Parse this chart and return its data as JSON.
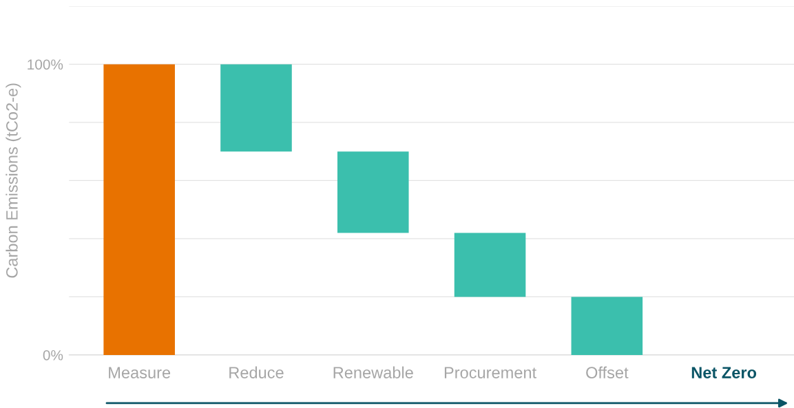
{
  "chart_data": {
    "type": "bar",
    "ylabel": "Carbon Emissions (tCo2-e)",
    "categories": [
      "Measure",
      "Reduce",
      "Renewable",
      "Procurement",
      "Offset",
      "Net Zero"
    ],
    "values": [
      100,
      30,
      28,
      22,
      20,
      null
    ],
    "base": [
      0,
      70,
      42,
      20,
      0,
      null
    ],
    "colors": [
      "#e87200",
      "#3bbfad",
      "#3bbfad",
      "#3bbfad",
      "#3bbfad",
      null
    ],
    "ylim": [
      0,
      120
    ],
    "yticks": [
      {
        "value": 0,
        "label": "0%"
      },
      {
        "value": 20,
        "label": null
      },
      {
        "value": 40,
        "label": null
      },
      {
        "value": 60,
        "label": null
      },
      {
        "value": 80,
        "label": null
      },
      {
        "value": 100,
        "label": "100%"
      },
      {
        "value": 120,
        "label": null
      }
    ],
    "grid": "y"
  }
}
